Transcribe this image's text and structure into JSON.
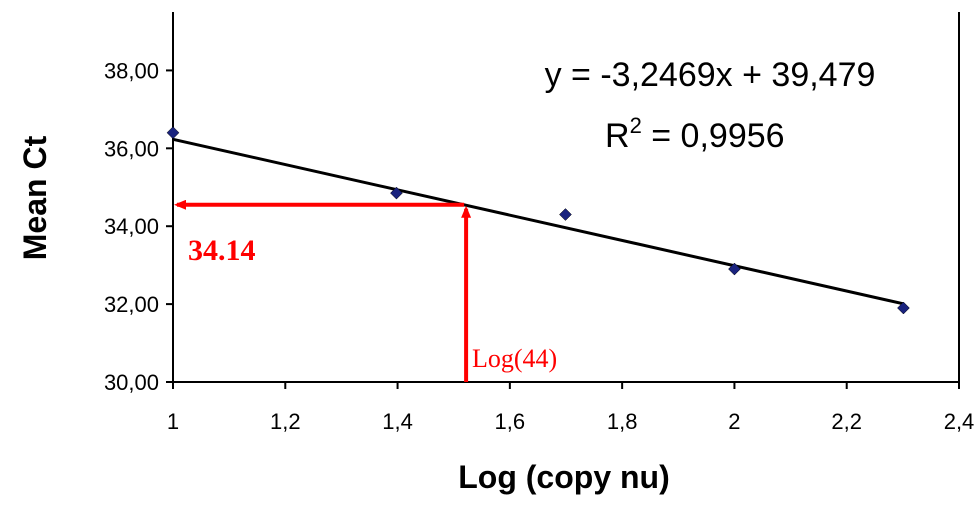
{
  "chart_data": {
    "type": "scatter",
    "xlabel": "Log (copy nu)",
    "ylabel": "Mean Ct",
    "xlim": [
      1,
      2.4
    ],
    "ylim": [
      30,
      39.5
    ],
    "x_ticks": [
      "1",
      "1,2",
      "1,4",
      "1,6",
      "1,8",
      "2",
      "2,2",
      "2,4"
    ],
    "y_ticks": [
      "30,00",
      "32,00",
      "34,00",
      "36,00",
      "38,00"
    ],
    "points": [
      {
        "x": 1.0,
        "y": 36.4
      },
      {
        "x": 1.398,
        "y": 34.85
      },
      {
        "x": 1.699,
        "y": 34.3
      },
      {
        "x": 2.0,
        "y": 32.9
      },
      {
        "x": 2.301,
        "y": 31.9
      }
    ],
    "trendline": {
      "slope": -3.2469,
      "intercept": 39.479,
      "x_start": 1.0,
      "x_end": 2.301
    },
    "equation": "y = -3,2469x + 39,479",
    "r2_label": "R",
    "r2_exponent": "2",
    "r2_value": " = 0,9956",
    "annotation": {
      "x": 1.5185,
      "y": 34.55,
      "y_text": "34.14",
      "x_text": "Log(44)"
    },
    "marker_color": "#1a237e",
    "line_color": "#000000",
    "annotation_color": "#ff0000",
    "grid": false
  }
}
